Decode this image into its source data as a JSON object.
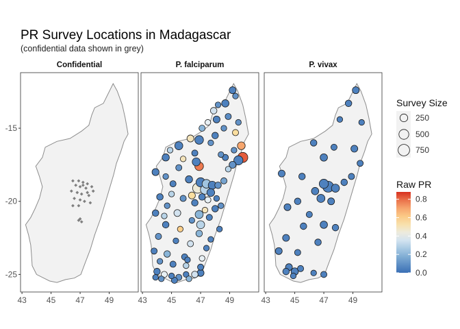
{
  "chart_data": {
    "type": "scatter",
    "title": "PR Survey Locations in Madagascar",
    "subtitle": "(confidential data shown in grey)",
    "panels": [
      "Confidential",
      "P. falciparum",
      "P. vivax"
    ],
    "x_ticks": [
      "43",
      "45",
      "47",
      "49"
    ],
    "y_ticks": [
      "-15",
      "-20",
      "-25"
    ],
    "xlim": [
      42.9,
      51.0
    ],
    "ylim": [
      -26.2,
      -11.2
    ],
    "legend_size": {
      "title": "Survey Size",
      "labels": [
        "250",
        "500",
        "750"
      ],
      "values": [
        250,
        500,
        750
      ]
    },
    "legend_color": {
      "title": "Raw PR",
      "labels": [
        "0.8",
        "0.6",
        "0.4",
        "0.2",
        "0.0"
      ],
      "values": [
        0.8,
        0.6,
        0.4,
        0.2,
        0.0
      ],
      "range": [
        0,
        0.88
      ]
    },
    "colors": {
      "panel_bg": "#ffffff",
      "land_fill": "#f2f2f2",
      "land_stroke": "#8c8c8c",
      "confidential_point": "#7f7f7f",
      "scale_low": "#3a6fb5",
      "scale_mid": "#f7f7f7",
      "scale_high": "#d7301f"
    },
    "series": [
      {
        "panel": "Confidential",
        "points": [
          [
            46.5,
            -18.6,
            30,
            0
          ],
          [
            46.9,
            -18.6,
            30,
            0
          ],
          [
            47.2,
            -18.7,
            30,
            0
          ],
          [
            47.5,
            -18.8,
            30,
            0
          ],
          [
            47.8,
            -19.0,
            30,
            0
          ],
          [
            46.7,
            -18.9,
            30,
            0
          ],
          [
            47.0,
            -19.0,
            30,
            0
          ],
          [
            47.4,
            -19.1,
            30,
            0
          ],
          [
            47.9,
            -19.3,
            30,
            0
          ],
          [
            46.4,
            -19.3,
            30,
            0
          ],
          [
            46.8,
            -19.4,
            30,
            0
          ],
          [
            47.1,
            -19.5,
            30,
            0
          ],
          [
            47.6,
            -19.6,
            30,
            0
          ],
          [
            46.6,
            -19.8,
            30,
            0
          ],
          [
            47.0,
            -19.9,
            30,
            0
          ],
          [
            47.3,
            -20.0,
            30,
            0
          ],
          [
            47.7,
            -20.1,
            30,
            0
          ],
          [
            46.5,
            -20.3,
            30,
            0
          ],
          [
            46.9,
            -20.3,
            30,
            0
          ],
          [
            47.5,
            -19.4,
            30,
            0
          ],
          [
            47.2,
            -18.9,
            30,
            0
          ],
          [
            46.9,
            -21.3,
            30,
            0
          ],
          [
            47.1,
            -21.4,
            30,
            0
          ],
          [
            47.0,
            -21.2,
            30,
            0
          ]
        ]
      },
      {
        "panel": "P. falciparum",
        "points": [
          [
            49.2,
            -12.4,
            120,
            0.05
          ],
          [
            49.4,
            -12.8,
            60,
            0.1
          ],
          [
            48.7,
            -13.3,
            150,
            0.05
          ],
          [
            48.2,
            -13.4,
            60,
            0.1
          ],
          [
            47.9,
            -13.8,
            100,
            0.35
          ],
          [
            48.9,
            -14.2,
            80,
            0.08
          ],
          [
            49.6,
            -14.6,
            60,
            0.1
          ],
          [
            48.1,
            -14.4,
            120,
            0.05
          ],
          [
            47.5,
            -14.6,
            60,
            0.4
          ],
          [
            47.1,
            -15.0,
            80,
            0.2
          ],
          [
            48.6,
            -15.0,
            60,
            0.1
          ],
          [
            49.4,
            -15.3,
            80,
            0.55
          ],
          [
            48.0,
            -15.5,
            100,
            0.05
          ],
          [
            46.9,
            -15.8,
            250,
            0.05
          ],
          [
            46.3,
            -15.7,
            120,
            0.5
          ],
          [
            47.7,
            -16.0,
            60,
            0.1
          ],
          [
            49.8,
            -16.2,
            180,
            0.7
          ],
          [
            45.5,
            -16.2,
            200,
            0.05
          ],
          [
            44.9,
            -16.5,
            60,
            0.3
          ],
          [
            46.6,
            -16.7,
            80,
            0.05
          ],
          [
            48.4,
            -16.8,
            60,
            0.1
          ],
          [
            49.9,
            -17.0,
            400,
            0.82
          ],
          [
            49.6,
            -17.2,
            300,
            0.05
          ],
          [
            44.6,
            -17.0,
            140,
            0.05
          ],
          [
            45.8,
            -17.1,
            60,
            0.5
          ],
          [
            46.7,
            -17.3,
            200,
            0.05
          ],
          [
            49.2,
            -17.5,
            120,
            0.1
          ],
          [
            46.9,
            -17.6,
            250,
            0.78
          ],
          [
            48.9,
            -17.8,
            60,
            0.3
          ],
          [
            45.5,
            -17.7,
            80,
            0.1
          ],
          [
            43.9,
            -18.0,
            130,
            0.05
          ],
          [
            44.6,
            -18.3,
            60,
            0.1
          ],
          [
            46.2,
            -18.5,
            140,
            0.05
          ],
          [
            47.0,
            -18.7,
            300,
            0.05
          ],
          [
            47.4,
            -18.8,
            250,
            0.25
          ],
          [
            47.8,
            -18.9,
            200,
            0.05
          ],
          [
            48.2,
            -18.9,
            100,
            0.1
          ],
          [
            48.6,
            -18.6,
            80,
            0.15
          ],
          [
            46.8,
            -19.1,
            400,
            0.45
          ],
          [
            47.3,
            -19.2,
            300,
            0.3
          ],
          [
            47.7,
            -19.4,
            180,
            0.05
          ],
          [
            46.4,
            -19.6,
            120,
            0.55
          ],
          [
            47.1,
            -19.7,
            100,
            0.05
          ],
          [
            47.5,
            -19.9,
            80,
            0.4
          ],
          [
            48.1,
            -19.8,
            60,
            0.05
          ],
          [
            44.2,
            -19.7,
            100,
            0.05
          ],
          [
            45.0,
            -19.5,
            60,
            0.3
          ],
          [
            45.8,
            -19.8,
            80,
            0.1
          ],
          [
            46.6,
            -20.1,
            100,
            0.05
          ],
          [
            47.3,
            -20.6,
            60,
            0.5
          ],
          [
            48.0,
            -20.5,
            100,
            0.05
          ],
          [
            46.9,
            -20.9,
            200,
            0.2
          ],
          [
            44.7,
            -20.3,
            60,
            0.1
          ],
          [
            43.9,
            -20.8,
            100,
            0.05
          ],
          [
            45.4,
            -20.8,
            120,
            0.35
          ],
          [
            47.6,
            -21.1,
            80,
            0.05
          ],
          [
            46.4,
            -21.3,
            60,
            0.1
          ],
          [
            47.0,
            -21.6,
            200,
            0.3
          ],
          [
            48.3,
            -21.9,
            60,
            0.05
          ],
          [
            44.6,
            -21.6,
            100,
            0.05
          ],
          [
            45.6,
            -21.9,
            60,
            0.6
          ],
          [
            46.9,
            -22.2,
            100,
            0.2
          ],
          [
            47.7,
            -22.6,
            60,
            0.05
          ],
          [
            44.1,
            -22.4,
            80,
            0.1
          ],
          [
            45.3,
            -22.7,
            60,
            0.05
          ],
          [
            46.3,
            -22.9,
            80,
            0.35
          ],
          [
            47.4,
            -23.2,
            60,
            0.05
          ],
          [
            43.8,
            -23.4,
            80,
            0.05
          ],
          [
            44.7,
            -23.6,
            100,
            0.2
          ],
          [
            45.9,
            -23.8,
            80,
            0.05
          ],
          [
            47.1,
            -23.9,
            60,
            0.4
          ],
          [
            44.2,
            -24.1,
            60,
            0.1
          ],
          [
            45.1,
            -24.3,
            80,
            0.05
          ],
          [
            46.0,
            -24.4,
            60,
            0.3
          ],
          [
            47.0,
            -24.5,
            80,
            0.05
          ],
          [
            44.0,
            -24.8,
            100,
            0.05
          ],
          [
            44.5,
            -25.0,
            80,
            0.4
          ],
          [
            45.0,
            -25.1,
            60,
            0.05
          ],
          [
            45.5,
            -25.2,
            80,
            0.1
          ],
          [
            46.0,
            -25.0,
            60,
            0.05
          ],
          [
            46.6,
            -25.0,
            100,
            0.35
          ],
          [
            47.0,
            -24.9,
            120,
            0.05
          ],
          [
            44.3,
            -25.3,
            60,
            0.1
          ],
          [
            45.2,
            -25.4,
            80,
            0.05
          ],
          [
            46.2,
            -25.3,
            60,
            0.2
          ],
          [
            43.9,
            -25.2,
            60,
            0.05
          ],
          [
            48.4,
            -20.3,
            60,
            0.1
          ],
          [
            48.7,
            -17.0,
            80,
            0.05
          ],
          [
            49.3,
            -16.5,
            60,
            0.1
          ],
          [
            45.1,
            -18.8,
            80,
            0.05
          ],
          [
            44.5,
            -21.0,
            60,
            0.3
          ],
          [
            46.1,
            -24.0,
            60,
            0.05
          ]
        ]
      },
      {
        "panel": "P. vivax",
        "points": [
          [
            49.2,
            -12.4,
            120,
            0.05
          ],
          [
            48.7,
            -13.3,
            100,
            0.05
          ],
          [
            48.1,
            -14.4,
            60,
            0.05
          ],
          [
            49.6,
            -14.6,
            60,
            0.05
          ],
          [
            46.3,
            -16.0,
            100,
            0.05
          ],
          [
            47.7,
            -16.3,
            80,
            0.05
          ],
          [
            49.1,
            -16.4,
            120,
            0.05
          ],
          [
            47.0,
            -17.0,
            150,
            0.05
          ],
          [
            49.5,
            -17.4,
            80,
            0.05
          ],
          [
            44.1,
            -18.1,
            120,
            0.05
          ],
          [
            45.5,
            -18.3,
            100,
            0.05
          ],
          [
            47.0,
            -18.8,
            300,
            0.05
          ],
          [
            47.3,
            -19.0,
            500,
            0.05
          ],
          [
            47.8,
            -19.1,
            200,
            0.05
          ],
          [
            46.4,
            -19.3,
            150,
            0.05
          ],
          [
            48.4,
            -18.7,
            100,
            0.05
          ],
          [
            48.9,
            -18.3,
            80,
            0.05
          ],
          [
            46.8,
            -19.8,
            200,
            0.05
          ],
          [
            47.5,
            -20.0,
            120,
            0.05
          ],
          [
            45.2,
            -20.0,
            100,
            0.05
          ],
          [
            44.5,
            -20.4,
            120,
            0.05
          ],
          [
            46.0,
            -20.9,
            80,
            0.05
          ],
          [
            47.0,
            -21.6,
            150,
            0.05
          ],
          [
            47.8,
            -21.8,
            100,
            0.05
          ],
          [
            45.6,
            -21.7,
            100,
            0.05
          ],
          [
            44.4,
            -22.5,
            120,
            0.05
          ],
          [
            46.6,
            -22.8,
            100,
            0.05
          ],
          [
            43.9,
            -23.4,
            120,
            0.05
          ],
          [
            45.2,
            -23.5,
            80,
            0.05
          ],
          [
            44.6,
            -24.5,
            120,
            0.05
          ],
          [
            45.0,
            -24.8,
            150,
            0.05
          ],
          [
            45.4,
            -24.6,
            80,
            0.05
          ],
          [
            44.4,
            -24.8,
            100,
            0.05
          ],
          [
            46.3,
            -24.9,
            60,
            0.05
          ],
          [
            47.0,
            -25.0,
            80,
            0.05
          ],
          [
            44.9,
            -25.1,
            60,
            0.05
          ]
        ]
      }
    ]
  }
}
